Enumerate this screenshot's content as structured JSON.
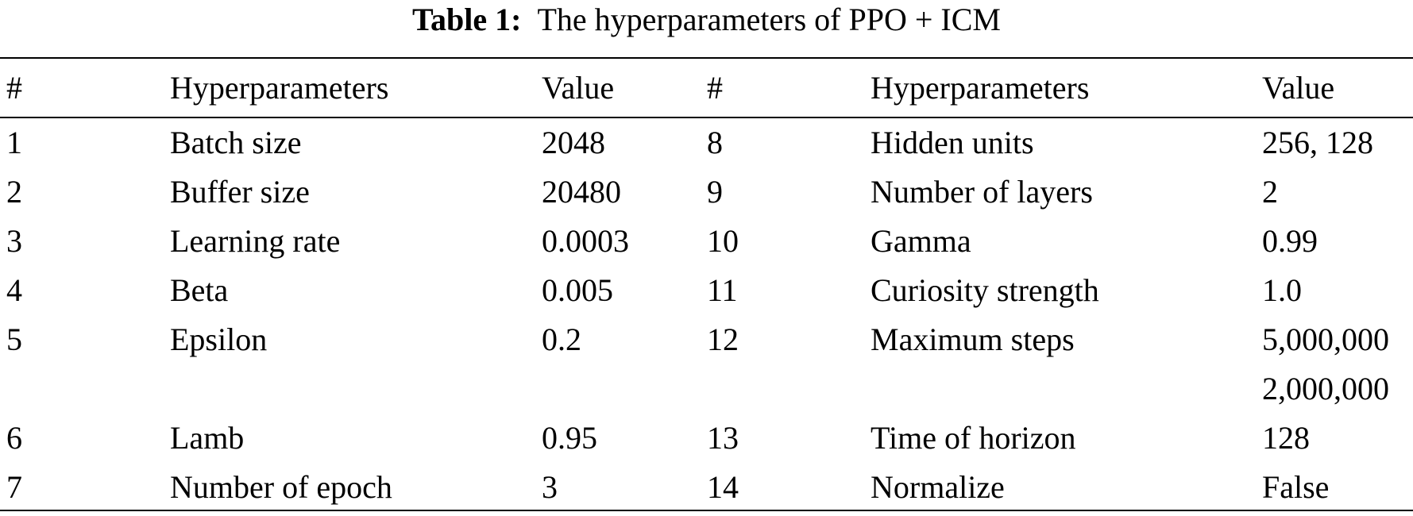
{
  "caption": {
    "label": "Table 1:",
    "title": "The hyperparameters of PPO + ICM"
  },
  "table": {
    "headers": [
      "#",
      "Hyperparameters",
      "Value",
      "#",
      "Hyperparameters",
      "Value"
    ],
    "rows": [
      [
        "1",
        "Batch size",
        "2048",
        "8",
        "Hidden units",
        "256, 128"
      ],
      [
        "2",
        "Buffer size",
        "20480",
        "9",
        "Number of layers",
        "2"
      ],
      [
        "3",
        "Learning rate",
        "0.0003",
        "10",
        "Gamma",
        "0.99"
      ],
      [
        "4",
        "Beta",
        "0.005",
        "11",
        "Curiosity strength",
        "1.0"
      ],
      [
        "5",
        "Epsilon",
        "0.2",
        "12",
        "Maximum steps",
        [
          "5,000,000",
          "2,000,000"
        ]
      ],
      [
        "6",
        "Lamb",
        "0.95",
        "13",
        "Time of horizon",
        "128"
      ],
      [
        "7",
        "Number of epoch",
        "3",
        "14",
        "Normalize",
        "False"
      ]
    ]
  }
}
